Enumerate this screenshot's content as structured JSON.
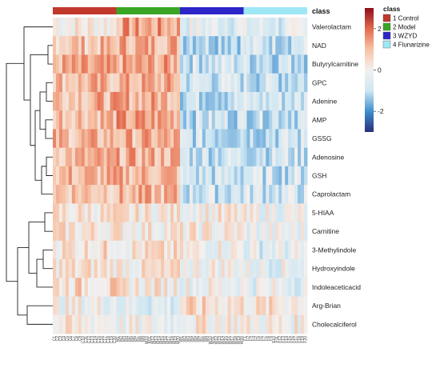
{
  "chart_data": {
    "type": "heatmap",
    "title": "",
    "xlabel": "",
    "ylabel": "",
    "rows": [
      "Valerolactam",
      "NAD",
      "Butyrylcarnitine",
      "GPC",
      "Adenine",
      "AMP",
      "GSSG",
      "Adenosine",
      "GSH",
      "Caprolactam",
      "5-HIAA",
      "Carnitine",
      "3-Methylindole",
      "Hydroxyindole",
      "Indoleaceticacid",
      "Arg-Brian",
      "Cholecalciferol"
    ],
    "annotation_label": "class",
    "groups": [
      {
        "name": "1 Control",
        "color": "#c0392b",
        "n_samples": 20
      },
      {
        "name": "2 Model",
        "color": "#3aa524",
        "n_samples": 20
      },
      {
        "name": "3 WZYD",
        "color": "#2b25c8",
        "n_samples": 20
      },
      {
        "name": "4 Flunarizine",
        "color": "#9ee8f5",
        "n_samples": 20
      }
    ],
    "group_row_means": {
      "1 Control": [
        0.2,
        0.9,
        1.1,
        1.0,
        1.1,
        1.1,
        1.0,
        1.0,
        1.0,
        1.0,
        0.3,
        0.3,
        0.4,
        0.3,
        0.5,
        -0.1,
        0.1
      ],
      "2 Model": [
        1.3,
        1.2,
        1.2,
        1.1,
        1.2,
        1.3,
        1.1,
        1.1,
        1.1,
        1.0,
        0.2,
        0.2,
        0.3,
        0.2,
        0.2,
        -0.5,
        -0.2
      ],
      "3 WZYD": [
        -0.4,
        -0.9,
        -0.8,
        -0.8,
        -0.9,
        -0.9,
        -0.9,
        -0.8,
        -0.9,
        -0.8,
        0.1,
        0.1,
        0.0,
        0.0,
        -0.1,
        0.4,
        0.2
      ],
      "4 Flunarizine": [
        -0.6,
        -0.8,
        -0.9,
        -0.9,
        -0.8,
        -0.8,
        -0.9,
        -0.8,
        -0.8,
        -0.7,
        -0.2,
        -0.3,
        -0.4,
        -0.3,
        -0.3,
        0.3,
        0.0
      ]
    },
    "color_scale": {
      "ticks": [
        2,
        0,
        -2
      ],
      "range": [
        -3,
        3
      ],
      "colors": [
        "#2b2e7a",
        "#3f8fce",
        "#cfe7f3",
        "#f3f0ee",
        "#f7c3a6",
        "#e46a4d",
        "#8e0d1c"
      ]
    },
    "column_labels": [
      "C1",
      "C2",
      "C3",
      "C4",
      "C5",
      "C6",
      "C7",
      "C8",
      "C9",
      "C10",
      "C11",
      "C12",
      "C13",
      "C14",
      "C15",
      "C16",
      "C17",
      "C18",
      "C19",
      "C20",
      "M1",
      "M2",
      "M3",
      "M4",
      "M5",
      "M6",
      "M7",
      "M8",
      "M9",
      "M10",
      "M11",
      "M12",
      "M13",
      "M14",
      "M15",
      "M16",
      "M17",
      "M18",
      "M19",
      "M20",
      "W1",
      "W2",
      "W3",
      "W4",
      "W5",
      "W6",
      "W7",
      "W8",
      "W9",
      "W10",
      "W11",
      "W12",
      "W13",
      "W14",
      "W15",
      "W16",
      "W17",
      "W18",
      "W19",
      "W20",
      "F1",
      "F2",
      "F3",
      "F4",
      "F5",
      "F6",
      "F7",
      "F8",
      "F9",
      "F10",
      "F11",
      "F12",
      "F13",
      "F14",
      "F15",
      "F16",
      "F17",
      "F18",
      "F19",
      "F20"
    ]
  }
}
